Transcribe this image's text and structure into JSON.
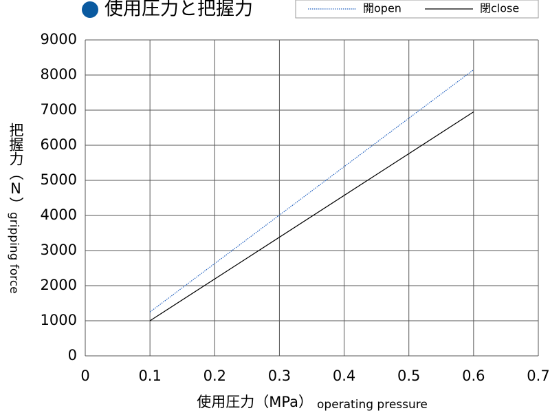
{
  "chart_data": {
    "type": "line",
    "title": "使用圧力と把握力",
    "x": [
      0.1,
      0.6
    ],
    "series": [
      {
        "name": "開open",
        "color": "#1f5fbf",
        "dash": "dotted",
        "values": [
          1250,
          8150
        ]
      },
      {
        "name": "閉close",
        "color": "#000000",
        "dash": "solid",
        "values": [
          1000,
          6950
        ]
      }
    ],
    "xlim": [
      0,
      0.7
    ],
    "xticks": [
      0,
      0.1,
      0.2,
      0.3,
      0.4,
      0.5,
      0.6,
      0.7
    ],
    "ylim": [
      0,
      9000
    ],
    "yticks": [
      0,
      1000,
      2000,
      3000,
      4000,
      5000,
      6000,
      7000,
      8000,
      9000
    ],
    "grid": true,
    "x_label": "使用圧力（MPa）",
    "x_label_en": "operating pressure",
    "y_label": "把握力（N）",
    "y_label_en": "gripping force",
    "legend": "top-right",
    "title_marker_color": "#0a5aa0"
  }
}
